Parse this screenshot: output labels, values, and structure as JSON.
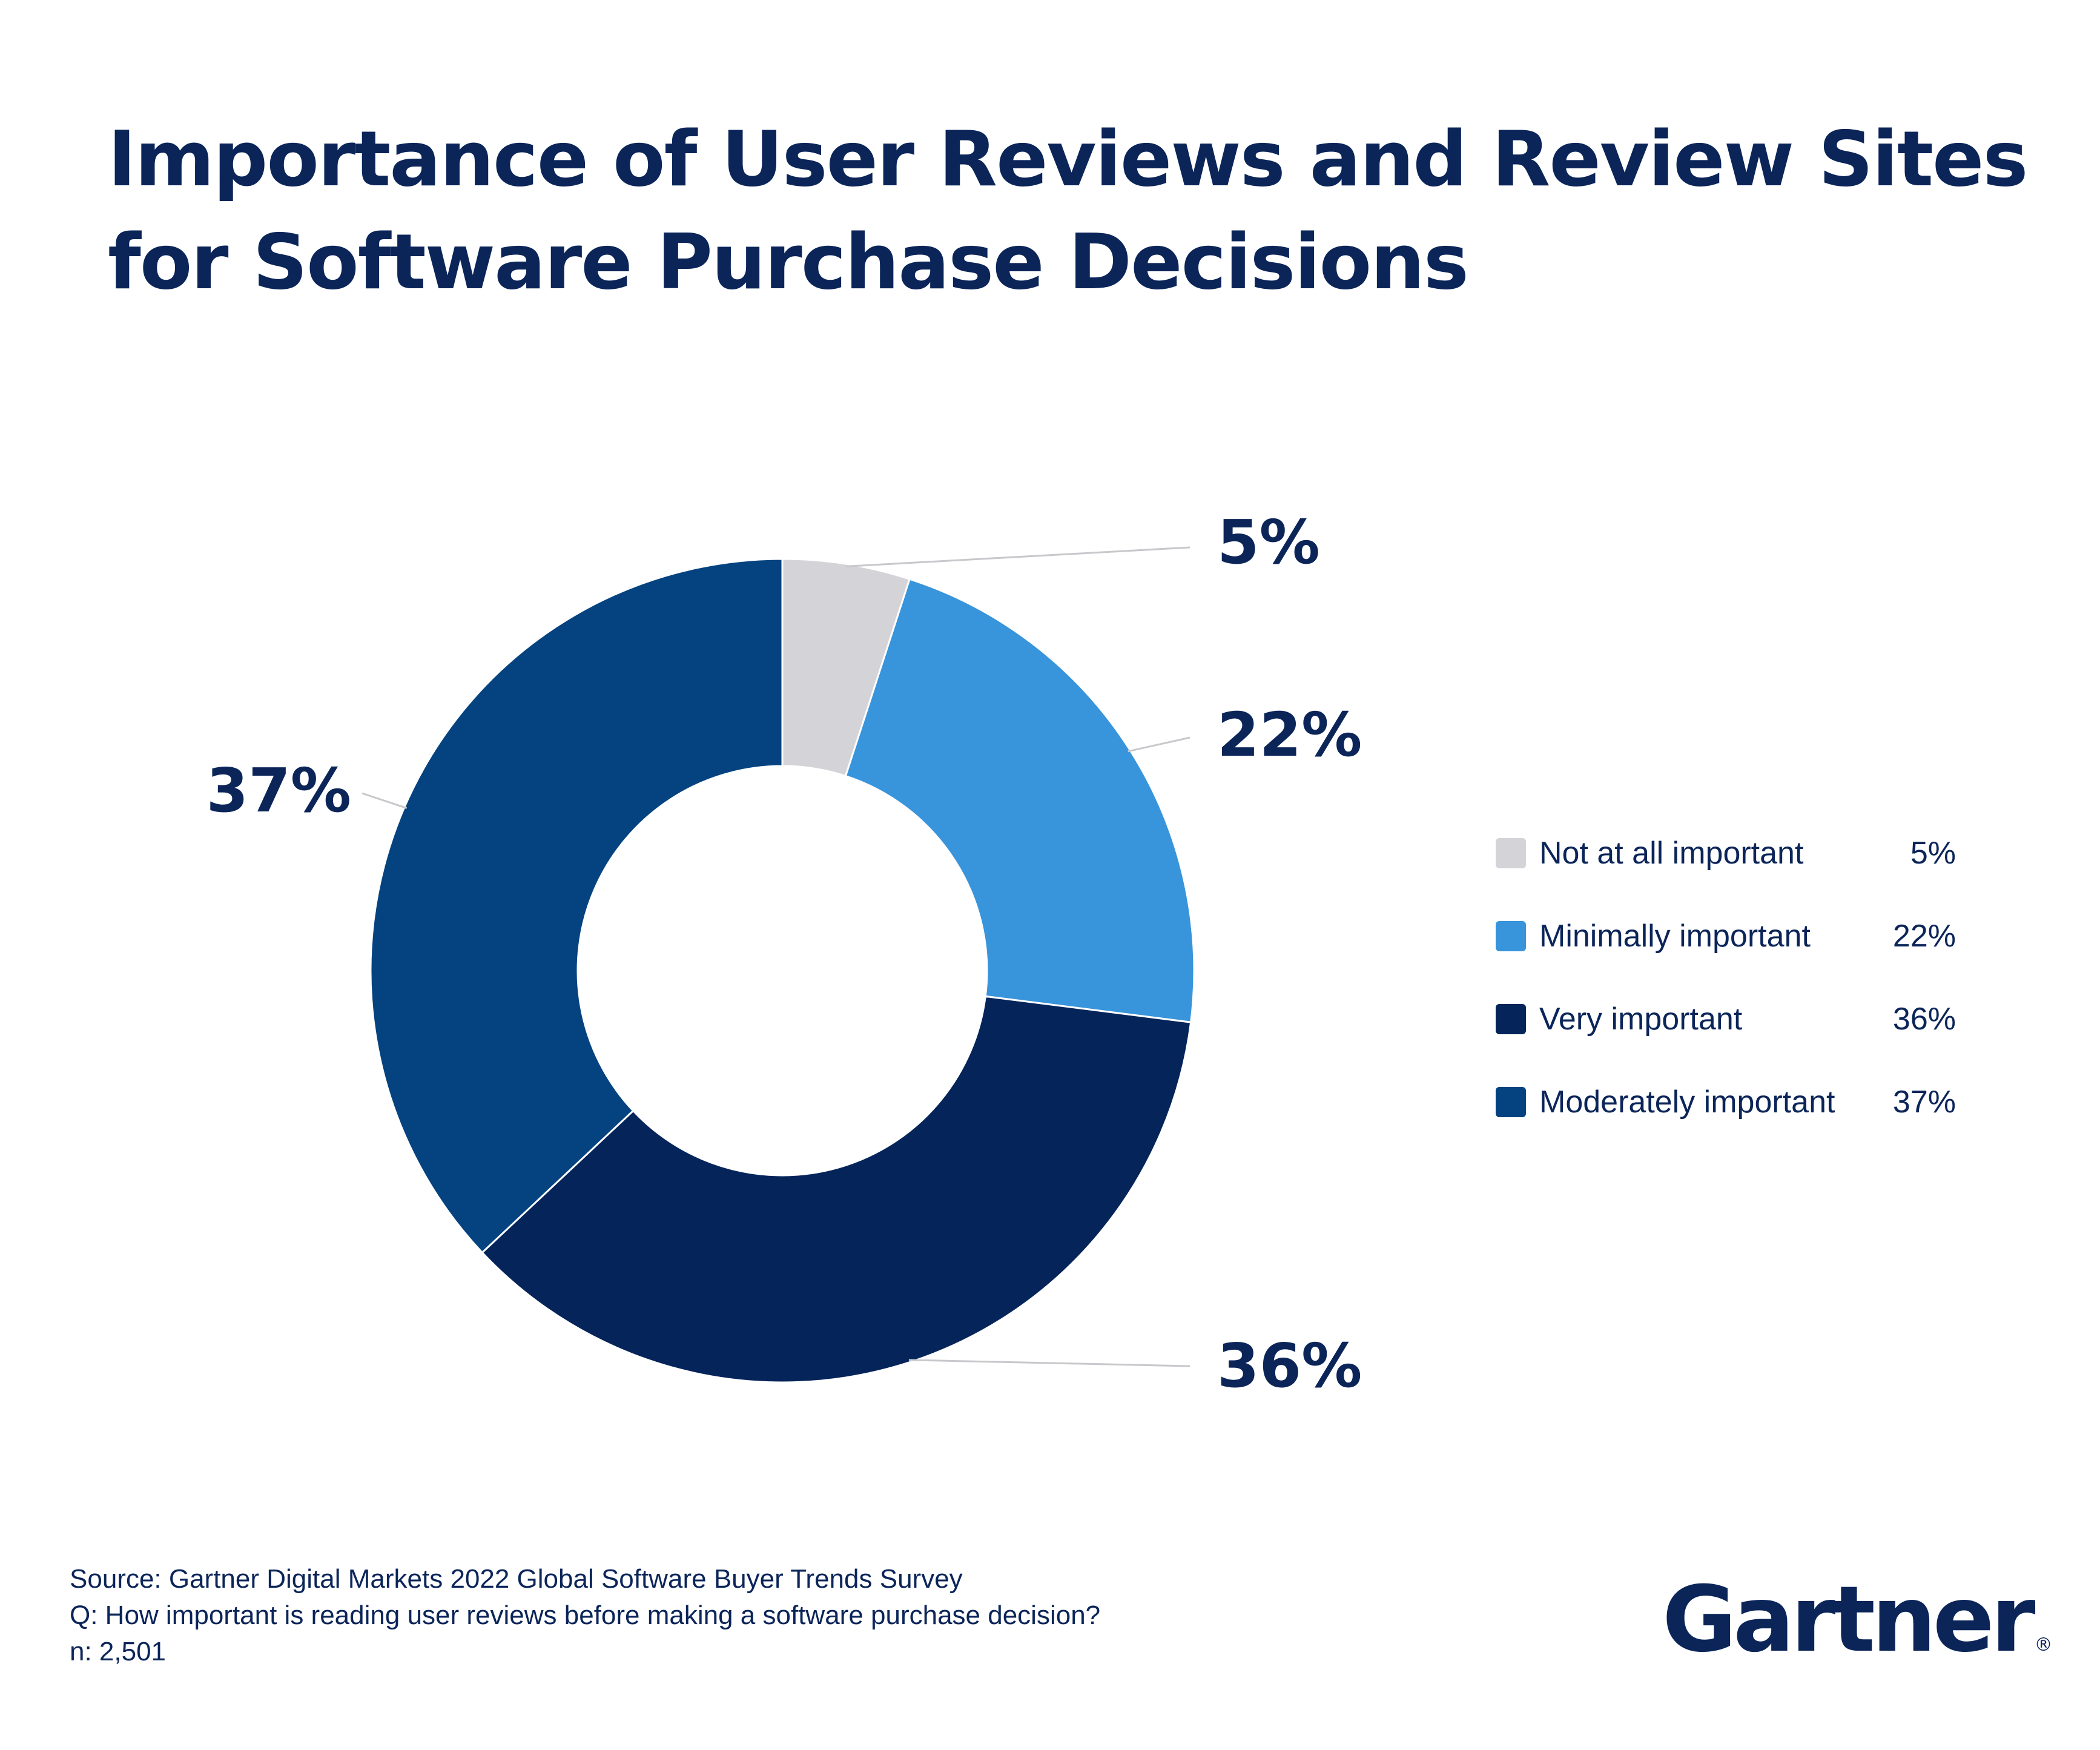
{
  "title": {
    "line1": "Importance of User Reviews and Review Sites",
    "line2": "for Software Purchase Decisions"
  },
  "chart_data": {
    "type": "pie",
    "variant": "donut",
    "title": "Importance of User Reviews and Review Sites for Software Purchase Decisions",
    "categories": [
      "Not at all important",
      "Minimally important",
      "Very important",
      "Moderately important"
    ],
    "values": [
      5,
      22,
      36,
      37
    ],
    "unit": "%",
    "data_labels": [
      "5%",
      "22%",
      "36%",
      "37%"
    ],
    "colors": [
      "#d4d4d8",
      "#3894db",
      "#04245a",
      "#044280"
    ],
    "legend_position": "right"
  },
  "legend": {
    "items": [
      {
        "label": "Not at all important",
        "value": "5%",
        "color": "#d4d4d8"
      },
      {
        "label": "Minimally important",
        "value": "22%",
        "color": "#3894db"
      },
      {
        "label": "Very important",
        "value": "36%",
        "color": "#04245a"
      },
      {
        "label": "Moderately important",
        "value": "37%",
        "color": "#044280"
      }
    ]
  },
  "source": {
    "line1": "Source: Gartner Digital Markets 2022 Global Software Buyer Trends Survey",
    "line2": "Q: How important is reading user reviews before making a software purchase decision?",
    "line3": "n: 2,501"
  },
  "brand": {
    "name": "Gartner",
    "mark": "®"
  }
}
